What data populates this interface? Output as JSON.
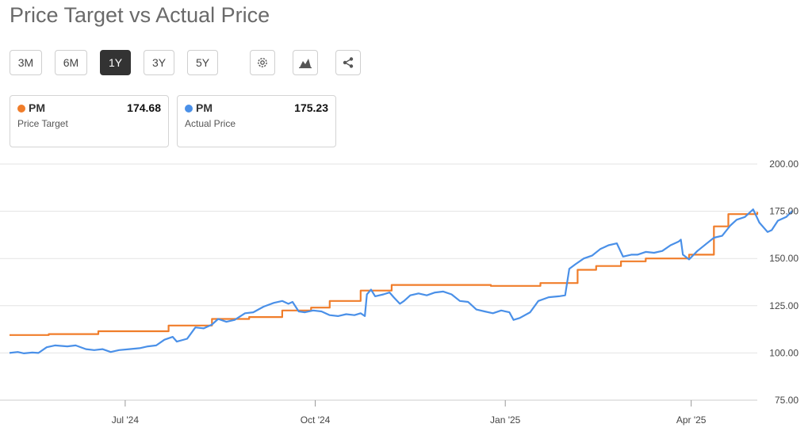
{
  "title": "Price Target vs Actual Price",
  "range_buttons": [
    {
      "label": "3M",
      "active": false
    },
    {
      "label": "6M",
      "active": false
    },
    {
      "label": "1Y",
      "active": true
    },
    {
      "label": "3Y",
      "active": false
    },
    {
      "label": "5Y",
      "active": false
    }
  ],
  "icons": [
    "gear-icon",
    "chart-type-icon",
    "share-icon"
  ],
  "legend_cards": [
    {
      "ticker": "PM",
      "value": "174.68",
      "label": "Price Target",
      "color": "#f07d2a"
    },
    {
      "ticker": "PM",
      "value": "175.23",
      "label": "Actual Price",
      "color": "#4a90e8"
    }
  ],
  "chart_data": {
    "type": "line",
    "title": "Price Target vs Actual Price",
    "x_range": [
      "2024-05-06",
      "2025-05-03"
    ],
    "ylim": [
      75,
      200
    ],
    "y_ticks": [
      "200.00",
      "175.00",
      "150.00",
      "125.00",
      "100.00",
      "75.00"
    ],
    "y_tick_values": [
      200,
      175,
      150,
      125,
      100,
      75
    ],
    "x_ticks": [
      {
        "label": "Jul '24",
        "date": "2024-07-01"
      },
      {
        "label": "Oct '24",
        "date": "2024-10-01"
      },
      {
        "label": "Jan '25",
        "date": "2025-01-01"
      },
      {
        "label": "Apr '25",
        "date": "2025-04-01"
      }
    ],
    "grid": true,
    "series": [
      {
        "name": "Price Target",
        "color": "#f07d2a",
        "step": true,
        "points": [
          [
            "2024-05-06",
            109.5
          ],
          [
            "2024-05-25",
            110.0
          ],
          [
            "2024-06-18",
            111.5
          ],
          [
            "2024-07-22",
            114.5
          ],
          [
            "2024-08-12",
            118.0
          ],
          [
            "2024-08-30",
            119.0
          ],
          [
            "2024-09-15",
            122.5
          ],
          [
            "2024-09-29",
            124.0
          ],
          [
            "2024-10-08",
            127.5
          ],
          [
            "2024-10-23",
            133.0
          ],
          [
            "2024-11-07",
            136.0
          ],
          [
            "2024-12-25",
            135.5
          ],
          [
            "2025-01-18",
            137.0
          ],
          [
            "2025-02-05",
            144.0
          ],
          [
            "2025-02-14",
            146.0
          ],
          [
            "2025-02-26",
            148.5
          ],
          [
            "2025-03-10",
            150.0
          ],
          [
            "2025-03-31",
            152.0
          ],
          [
            "2025-04-12",
            167.0
          ],
          [
            "2025-04-19",
            173.5
          ],
          [
            "2025-05-03",
            174.68
          ]
        ]
      },
      {
        "name": "Actual Price",
        "color": "#4a90e8",
        "step": false,
        "points": [
          [
            "2024-05-06",
            100.0
          ],
          [
            "2024-05-10",
            100.5
          ],
          [
            "2024-05-13",
            99.8
          ],
          [
            "2024-05-17",
            100.2
          ],
          [
            "2024-05-20",
            100.0
          ],
          [
            "2024-05-24",
            103.0
          ],
          [
            "2024-05-28",
            104.0
          ],
          [
            "2024-06-03",
            103.5
          ],
          [
            "2024-06-07",
            104.0
          ],
          [
            "2024-06-12",
            102.0
          ],
          [
            "2024-06-16",
            101.5
          ],
          [
            "2024-06-20",
            102.0
          ],
          [
            "2024-06-24",
            100.5
          ],
          [
            "2024-06-28",
            101.5
          ],
          [
            "2024-07-03",
            102.0
          ],
          [
            "2024-07-08",
            102.5
          ],
          [
            "2024-07-12",
            103.5
          ],
          [
            "2024-07-16",
            104.0
          ],
          [
            "2024-07-20",
            107.0
          ],
          [
            "2024-07-24",
            108.5
          ],
          [
            "2024-07-26",
            106.0
          ],
          [
            "2024-07-31",
            107.5
          ],
          [
            "2024-08-04",
            113.5
          ],
          [
            "2024-08-08",
            113.0
          ],
          [
            "2024-08-12",
            115.0
          ],
          [
            "2024-08-15",
            118.0
          ],
          [
            "2024-08-19",
            116.5
          ],
          [
            "2024-08-23",
            117.5
          ],
          [
            "2024-08-28",
            121.0
          ],
          [
            "2024-09-01",
            121.5
          ],
          [
            "2024-09-06",
            124.5
          ],
          [
            "2024-09-11",
            126.5
          ],
          [
            "2024-09-15",
            127.5
          ],
          [
            "2024-09-18",
            126.0
          ],
          [
            "2024-09-20",
            127.0
          ],
          [
            "2024-09-23",
            122.0
          ],
          [
            "2024-09-26",
            121.5
          ],
          [
            "2024-09-30",
            122.5
          ],
          [
            "2024-10-04",
            122.0
          ],
          [
            "2024-10-08",
            120.0
          ],
          [
            "2024-10-12",
            119.5
          ],
          [
            "2024-10-16",
            120.5
          ],
          [
            "2024-10-20",
            120.0
          ],
          [
            "2024-10-23",
            121.0
          ],
          [
            "2024-10-25",
            119.5
          ],
          [
            "2024-10-26",
            131.0
          ],
          [
            "2024-10-28",
            133.5
          ],
          [
            "2024-10-30",
            130.0
          ],
          [
            "2024-11-03",
            131.0
          ],
          [
            "2024-11-06",
            132.0
          ],
          [
            "2024-11-08",
            129.5
          ],
          [
            "2024-11-11",
            126.0
          ],
          [
            "2024-11-13",
            127.5
          ],
          [
            "2024-11-16",
            130.5
          ],
          [
            "2024-11-20",
            131.5
          ],
          [
            "2024-11-24",
            130.5
          ],
          [
            "2024-11-28",
            132.0
          ],
          [
            "2024-12-02",
            132.5
          ],
          [
            "2024-12-06",
            131.0
          ],
          [
            "2024-12-10",
            127.5
          ],
          [
            "2024-12-14",
            127.0
          ],
          [
            "2024-12-18",
            123.0
          ],
          [
            "2024-12-22",
            122.0
          ],
          [
            "2024-12-26",
            121.0
          ],
          [
            "2024-12-30",
            122.5
          ],
          [
            "2025-01-03",
            121.5
          ],
          [
            "2025-01-05",
            117.5
          ],
          [
            "2025-01-08",
            118.5
          ],
          [
            "2025-01-13",
            121.5
          ],
          [
            "2025-01-17",
            127.5
          ],
          [
            "2025-01-22",
            129.5
          ],
          [
            "2025-01-27",
            130.0
          ],
          [
            "2025-01-30",
            130.5
          ],
          [
            "2025-02-01",
            144.5
          ],
          [
            "2025-02-04",
            147.0
          ],
          [
            "2025-02-08",
            150.0
          ],
          [
            "2025-02-12",
            151.5
          ],
          [
            "2025-02-16",
            155.0
          ],
          [
            "2025-02-20",
            157.0
          ],
          [
            "2025-02-24",
            158.0
          ],
          [
            "2025-02-27",
            151.0
          ],
          [
            "2025-03-03",
            152.0
          ],
          [
            "2025-03-06",
            152.0
          ],
          [
            "2025-03-10",
            153.5
          ],
          [
            "2025-03-14",
            153.0
          ],
          [
            "2025-03-18",
            154.0
          ],
          [
            "2025-03-22",
            157.0
          ],
          [
            "2025-03-26",
            159.0
          ],
          [
            "2025-03-27",
            160.0
          ],
          [
            "2025-03-28",
            152.0
          ],
          [
            "2025-03-31",
            149.5
          ],
          [
            "2025-04-04",
            154.0
          ],
          [
            "2025-04-08",
            157.5
          ],
          [
            "2025-04-12",
            161.0
          ],
          [
            "2025-04-16",
            162.0
          ],
          [
            "2025-04-20",
            167.5
          ],
          [
            "2025-04-23",
            170.5
          ],
          [
            "2025-04-27",
            172.0
          ],
          [
            "2025-05-01",
            176.0
          ],
          [
            "2025-05-04",
            169.0
          ],
          [
            "2025-05-08",
            164.0
          ],
          [
            "2025-05-10",
            165.0
          ],
          [
            "2025-05-13",
            170.0
          ],
          [
            "2025-05-17",
            172.0
          ],
          [
            "2025-05-20",
            175.23
          ]
        ]
      }
    ]
  }
}
